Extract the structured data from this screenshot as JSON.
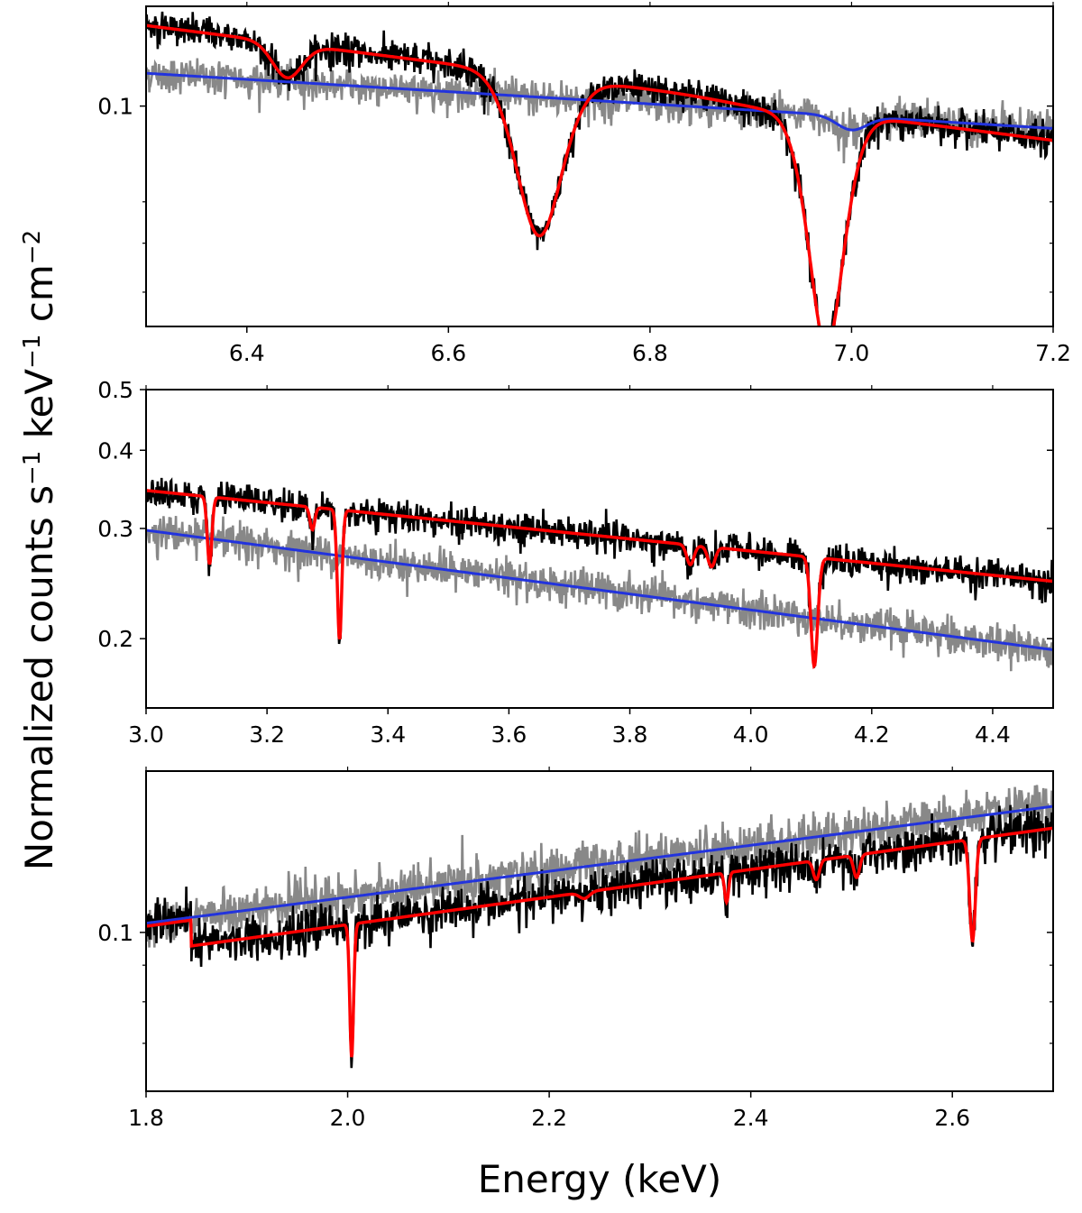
{
  "ylabel": "Normalized counts s",
  "ylabel_sup1": "−1",
  "ylabel_mid": " keV",
  "ylabel_sup2": "−1",
  "ylabel_end": " cm",
  "ylabel_sup3": "−2",
  "xlabel": "Energy (keV)",
  "colors": {
    "data": "#000000",
    "data2": "#888888",
    "model": "#ff0000",
    "continuum": "#2233dd"
  },
  "chart_data": [
    {
      "type": "line",
      "scale_y": "log",
      "xlim": [
        6.3,
        7.2
      ],
      "ylim": [
        0.044,
        0.145
      ],
      "xticks": [
        {
          "v": 6.4,
          "label": "6.4"
        },
        {
          "v": 6.6,
          "label": "6.6"
        },
        {
          "v": 6.8,
          "label": "6.8"
        },
        {
          "v": 7.0,
          "label": "7.0"
        },
        {
          "v": 7.2,
          "label": "7.2"
        }
      ],
      "yticks": [
        {
          "v": 0.1,
          "label": "0.1"
        }
      ],
      "yminor": [
        0.07,
        0.06,
        0.05,
        0.04
      ],
      "continuum": {
        "start": 0.113,
        "end": 0.092,
        "dips": [
          {
            "x": 7.0,
            "depth": 0.05,
            "width": 0.015
          }
        ]
      },
      "model": {
        "start": 0.135,
        "end": 0.088,
        "dips": [
          {
            "x": 6.44,
            "depth": 0.12,
            "width": 0.015
          },
          {
            "x": 6.69,
            "depth": 0.45,
            "width": 0.025
          },
          {
            "x": 6.975,
            "depth": 0.58,
            "width": 0.02
          },
          {
            "x": 6.93,
            "depth": 0.02,
            "width": 0.05
          }
        ]
      },
      "noise": 0.03
    },
    {
      "type": "line",
      "scale_y": "log",
      "xlim": [
        3.0,
        4.5
      ],
      "ylim": [
        0.155,
        0.5
      ],
      "xticks": [
        {
          "v": 3.0,
          "label": "3.0"
        },
        {
          "v": 3.2,
          "label": "3.2"
        },
        {
          "v": 3.4,
          "label": "3.4"
        },
        {
          "v": 3.6,
          "label": "3.6"
        },
        {
          "v": 3.8,
          "label": "3.8"
        },
        {
          "v": 4.0,
          "label": "4.0"
        },
        {
          "v": 4.2,
          "label": "4.2"
        },
        {
          "v": 4.4,
          "label": "4.4"
        }
      ],
      "yticks": [
        {
          "v": 0.2,
          "label": "0.2"
        },
        {
          "v": 0.3,
          "label": "0.3"
        },
        {
          "v": 0.4,
          "label": "0.4"
        },
        {
          "v": 0.5,
          "label": "0.5"
        }
      ],
      "yminor": [],
      "continuum": {
        "start": 0.298,
        "end": 0.192,
        "dips": []
      },
      "model": {
        "start": 0.345,
        "end": 0.247,
        "dips": [
          {
            "x": 3.105,
            "depth": 0.22,
            "width": 0.004
          },
          {
            "x": 3.275,
            "depth": 0.08,
            "width": 0.004
          },
          {
            "x": 3.32,
            "depth": 0.38,
            "width": 0.004
          },
          {
            "x": 3.9,
            "depth": 0.07,
            "width": 0.006
          },
          {
            "x": 3.935,
            "depth": 0.07,
            "width": 0.006
          },
          {
            "x": 4.105,
            "depth": 0.33,
            "width": 0.006
          }
        ]
      },
      "noise": 0.03
    },
    {
      "type": "line",
      "scale_y": "log",
      "xlim": [
        1.8,
        2.7
      ],
      "ylim": [
        0.06,
        0.168
      ],
      "xticks": [
        {
          "v": 1.8,
          "label": "1.8"
        },
        {
          "v": 2.0,
          "label": "2.0"
        },
        {
          "v": 2.2,
          "label": "2.2"
        },
        {
          "v": 2.4,
          "label": "2.4"
        },
        {
          "v": 2.6,
          "label": "2.6"
        }
      ],
      "yticks": [
        {
          "v": 0.1,
          "label": "0.1"
        }
      ],
      "yminor": [
        0.09,
        0.08,
        0.07
      ],
      "continuum": {
        "start": 0.103,
        "end": 0.15,
        "dips": []
      },
      "model": {
        "start": 0.102,
        "end": 0.152,
        "dips": [
          {
            "x": 2.004,
            "depth": 0.35,
            "width": 0.002
          },
          {
            "x": 2.235,
            "depth": 0.02,
            "width": 0.005
          },
          {
            "x": 2.376,
            "depth": 0.09,
            "width": 0.002
          },
          {
            "x": 2.465,
            "depth": 0.06,
            "width": 0.003
          },
          {
            "x": 2.505,
            "depth": 0.07,
            "width": 0.003
          },
          {
            "x": 2.62,
            "depth": 0.28,
            "width": 0.003
          }
        ],
        "edge": {
          "x": 1.845,
          "ratio": 0.92
        }
      },
      "noise": 0.035
    }
  ]
}
